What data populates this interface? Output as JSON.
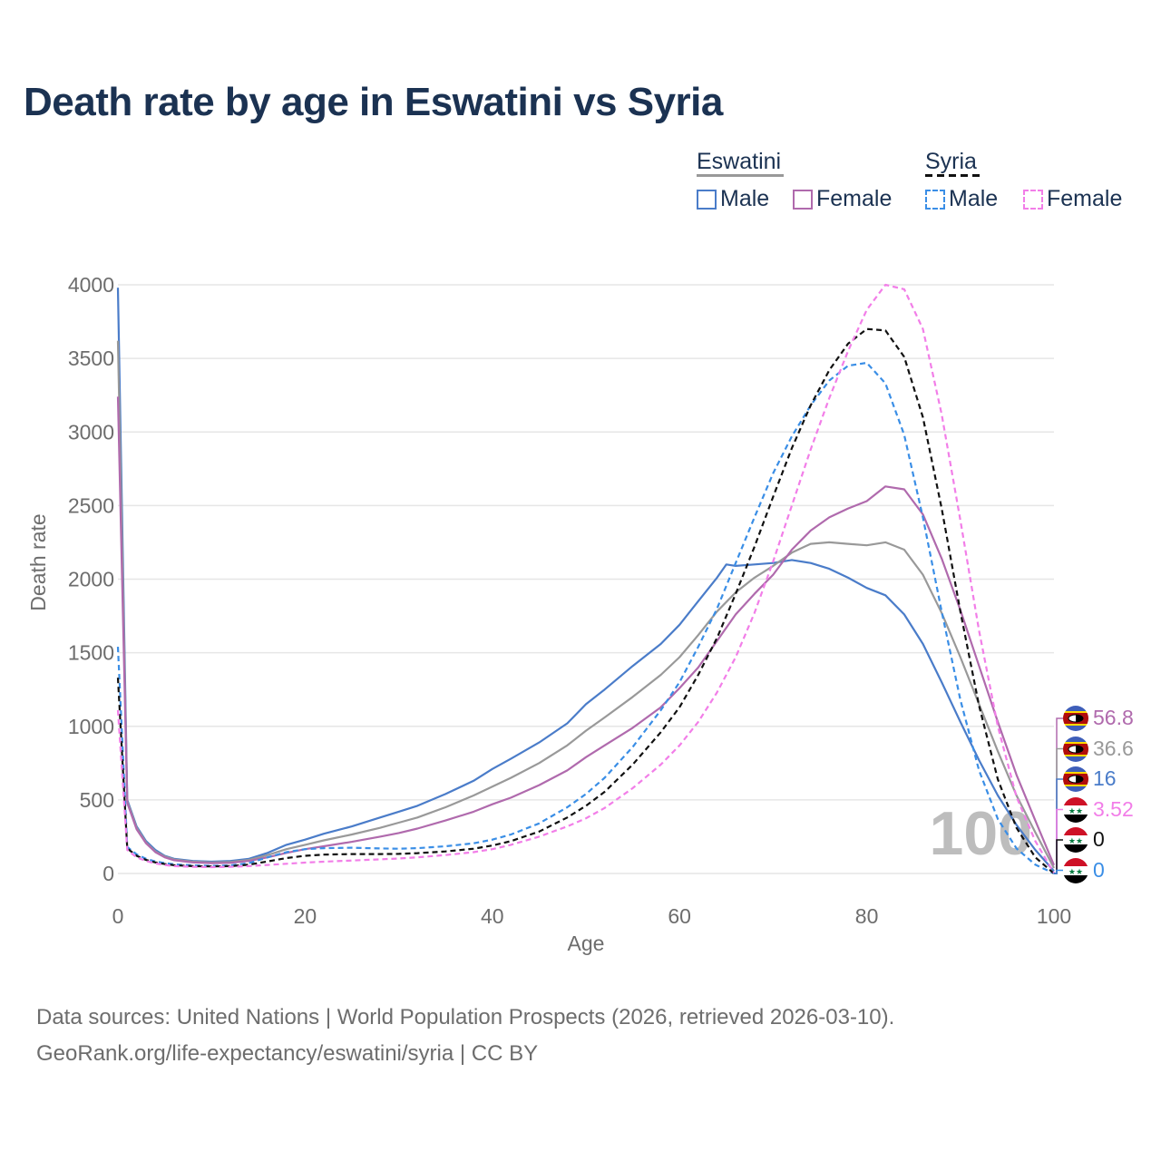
{
  "title": "Death rate by age in Eswatini vs Syria",
  "legend": {
    "groups": [
      {
        "name": "Eswatini",
        "line_color": "#999999",
        "dashed": false,
        "items": [
          {
            "label": "Male",
            "color": "#4a7cc9"
          },
          {
            "label": "Female",
            "color": "#b06aad"
          }
        ]
      },
      {
        "name": "Syria",
        "line_color": "#111111",
        "dashed": true,
        "items": [
          {
            "label": "Male",
            "color": "#3a8ee6"
          },
          {
            "label": "Female",
            "color": "#f27ee8"
          }
        ]
      }
    ]
  },
  "age_watermark": "100",
  "end_labels": [
    {
      "value": "56.8",
      "color": "#b06aad",
      "flag": "eswatini"
    },
    {
      "value": "36.6",
      "color": "#999999",
      "flag": "eswatini"
    },
    {
      "value": "16",
      "color": "#4a7cc9",
      "flag": "eswatini"
    },
    {
      "value": "3.52",
      "color": "#f27ee8",
      "flag": "syria"
    },
    {
      "value": "0",
      "color": "#111111",
      "flag": "syria"
    },
    {
      "value": "0",
      "color": "#3a8ee6",
      "flag": "syria"
    }
  ],
  "footer": {
    "line1": "Data sources: United Nations | World Population Prospects (2026, retrieved 2026-03-10).",
    "line2": "GeoRank.org/life-expectancy/eswatini/syria | CC BY"
  },
  "chart_data": {
    "type": "line",
    "title": "Death rate by age in Eswatini vs Syria",
    "xlabel": "Age",
    "ylabel": "Death rate",
    "xlim": [
      0,
      100
    ],
    "ylim": [
      0,
      4000
    ],
    "xticks": [
      0,
      20,
      40,
      60,
      80,
      100
    ],
    "yticks": [
      0,
      500,
      1000,
      1500,
      2000,
      2500,
      3000,
      3500,
      4000
    ],
    "grid": true,
    "series": [
      {
        "name": "Eswatini Male",
        "color": "#4a7cc9",
        "dashed": false,
        "points": [
          [
            0,
            3980
          ],
          [
            1,
            500
          ],
          [
            2,
            320
          ],
          [
            3,
            220
          ],
          [
            4,
            160
          ],
          [
            5,
            120
          ],
          [
            6,
            100
          ],
          [
            8,
            85
          ],
          [
            10,
            80
          ],
          [
            12,
            85
          ],
          [
            14,
            100
          ],
          [
            16,
            140
          ],
          [
            18,
            195
          ],
          [
            20,
            230
          ],
          [
            22,
            270
          ],
          [
            25,
            320
          ],
          [
            28,
            380
          ],
          [
            30,
            420
          ],
          [
            32,
            460
          ],
          [
            35,
            540
          ],
          [
            38,
            630
          ],
          [
            40,
            710
          ],
          [
            42,
            780
          ],
          [
            45,
            890
          ],
          [
            48,
            1020
          ],
          [
            50,
            1150
          ],
          [
            52,
            1250
          ],
          [
            55,
            1410
          ],
          [
            58,
            1560
          ],
          [
            60,
            1690
          ],
          [
            62,
            1850
          ],
          [
            64,
            2010
          ],
          [
            65,
            2100
          ],
          [
            66,
            2090
          ],
          [
            68,
            2100
          ],
          [
            70,
            2110
          ],
          [
            72,
            2130
          ],
          [
            74,
            2110
          ],
          [
            76,
            2070
          ],
          [
            78,
            2010
          ],
          [
            80,
            1940
          ],
          [
            82,
            1890
          ],
          [
            84,
            1760
          ],
          [
            86,
            1560
          ],
          [
            88,
            1300
          ],
          [
            90,
            1030
          ],
          [
            92,
            770
          ],
          [
            94,
            530
          ],
          [
            96,
            330
          ],
          [
            98,
            160
          ],
          [
            100,
            16
          ]
        ]
      },
      {
        "name": "Eswatini Total",
        "color": "#999999",
        "dashed": false,
        "points": [
          [
            0,
            3620
          ],
          [
            1,
            490
          ],
          [
            2,
            310
          ],
          [
            3,
            210
          ],
          [
            4,
            150
          ],
          [
            5,
            115
          ],
          [
            6,
            95
          ],
          [
            8,
            80
          ],
          [
            10,
            75
          ],
          [
            12,
            78
          ],
          [
            14,
            92
          ],
          [
            16,
            125
          ],
          [
            18,
            165
          ],
          [
            20,
            195
          ],
          [
            22,
            225
          ],
          [
            25,
            265
          ],
          [
            28,
            310
          ],
          [
            30,
            345
          ],
          [
            32,
            380
          ],
          [
            35,
            450
          ],
          [
            38,
            530
          ],
          [
            40,
            590
          ],
          [
            42,
            650
          ],
          [
            45,
            750
          ],
          [
            48,
            870
          ],
          [
            50,
            970
          ],
          [
            52,
            1060
          ],
          [
            55,
            1200
          ],
          [
            58,
            1350
          ],
          [
            60,
            1470
          ],
          [
            62,
            1620
          ],
          [
            64,
            1780
          ],
          [
            66,
            1910
          ],
          [
            68,
            2010
          ],
          [
            70,
            2090
          ],
          [
            72,
            2180
          ],
          [
            74,
            2240
          ],
          [
            76,
            2250
          ],
          [
            78,
            2240
          ],
          [
            80,
            2230
          ],
          [
            82,
            2250
          ],
          [
            84,
            2200
          ],
          [
            86,
            2030
          ],
          [
            88,
            1770
          ],
          [
            90,
            1470
          ],
          [
            92,
            1150
          ],
          [
            94,
            830
          ],
          [
            96,
            530
          ],
          [
            98,
            280
          ],
          [
            100,
            37
          ]
        ]
      },
      {
        "name": "Eswatini Female",
        "color": "#b06aad",
        "dashed": false,
        "points": [
          [
            0,
            3240
          ],
          [
            1,
            480
          ],
          [
            2,
            300
          ],
          [
            3,
            205
          ],
          [
            4,
            145
          ],
          [
            5,
            110
          ],
          [
            6,
            90
          ],
          [
            8,
            75
          ],
          [
            10,
            70
          ],
          [
            12,
            72
          ],
          [
            14,
            85
          ],
          [
            16,
            110
          ],
          [
            18,
            140
          ],
          [
            20,
            165
          ],
          [
            22,
            185
          ],
          [
            25,
            215
          ],
          [
            28,
            250
          ],
          [
            30,
            275
          ],
          [
            32,
            305
          ],
          [
            35,
            360
          ],
          [
            38,
            420
          ],
          [
            40,
            470
          ],
          [
            42,
            515
          ],
          [
            45,
            600
          ],
          [
            48,
            700
          ],
          [
            50,
            790
          ],
          [
            52,
            870
          ],
          [
            55,
            990
          ],
          [
            58,
            1130
          ],
          [
            60,
            1260
          ],
          [
            62,
            1400
          ],
          [
            64,
            1580
          ],
          [
            66,
            1760
          ],
          [
            68,
            1900
          ],
          [
            70,
            2030
          ],
          [
            72,
            2200
          ],
          [
            74,
            2330
          ],
          [
            76,
            2420
          ],
          [
            78,
            2480
          ],
          [
            80,
            2530
          ],
          [
            82,
            2630
          ],
          [
            84,
            2610
          ],
          [
            86,
            2440
          ],
          [
            88,
            2140
          ],
          [
            90,
            1790
          ],
          [
            92,
            1410
          ],
          [
            94,
            1030
          ],
          [
            96,
            670
          ],
          [
            98,
            360
          ],
          [
            100,
            57
          ]
        ]
      },
      {
        "name": "Syria Male",
        "color": "#3a8ee6",
        "dashed": true,
        "points": [
          [
            0,
            1540
          ],
          [
            1,
            180
          ],
          [
            2,
            130
          ],
          [
            3,
            100
          ],
          [
            4,
            82
          ],
          [
            5,
            70
          ],
          [
            6,
            62
          ],
          [
            8,
            55
          ],
          [
            10,
            52
          ],
          [
            12,
            55
          ],
          [
            14,
            70
          ],
          [
            16,
            110
          ],
          [
            18,
            145
          ],
          [
            20,
            165
          ],
          [
            22,
            172
          ],
          [
            25,
            175
          ],
          [
            28,
            170
          ],
          [
            30,
            168
          ],
          [
            32,
            172
          ],
          [
            35,
            185
          ],
          [
            38,
            205
          ],
          [
            40,
            230
          ],
          [
            42,
            265
          ],
          [
            45,
            340
          ],
          [
            48,
            450
          ],
          [
            50,
            540
          ],
          [
            52,
            650
          ],
          [
            55,
            860
          ],
          [
            58,
            1110
          ],
          [
            60,
            1300
          ],
          [
            62,
            1540
          ],
          [
            64,
            1800
          ],
          [
            66,
            2110
          ],
          [
            68,
            2420
          ],
          [
            70,
            2720
          ],
          [
            72,
            2970
          ],
          [
            74,
            3180
          ],
          [
            76,
            3350
          ],
          [
            78,
            3450
          ],
          [
            80,
            3470
          ],
          [
            82,
            3330
          ],
          [
            84,
            2980
          ],
          [
            86,
            2420
          ],
          [
            88,
            1780
          ],
          [
            90,
            1180
          ],
          [
            92,
            700
          ],
          [
            94,
            370
          ],
          [
            96,
            170
          ],
          [
            98,
            60
          ],
          [
            100,
            0
          ]
        ]
      },
      {
        "name": "Syria Total",
        "color": "#111111",
        "dashed": true,
        "points": [
          [
            0,
            1330
          ],
          [
            1,
            170
          ],
          [
            2,
            120
          ],
          [
            3,
            92
          ],
          [
            4,
            75
          ],
          [
            5,
            64
          ],
          [
            6,
            56
          ],
          [
            8,
            50
          ],
          [
            10,
            48
          ],
          [
            12,
            50
          ],
          [
            14,
            60
          ],
          [
            16,
            82
          ],
          [
            18,
            105
          ],
          [
            20,
            120
          ],
          [
            22,
            128
          ],
          [
            25,
            132
          ],
          [
            28,
            132
          ],
          [
            30,
            133
          ],
          [
            32,
            138
          ],
          [
            35,
            150
          ],
          [
            38,
            168
          ],
          [
            40,
            190
          ],
          [
            42,
            220
          ],
          [
            45,
            285
          ],
          [
            48,
            380
          ],
          [
            50,
            460
          ],
          [
            52,
            555
          ],
          [
            55,
            740
          ],
          [
            58,
            960
          ],
          [
            60,
            1130
          ],
          [
            62,
            1350
          ],
          [
            64,
            1600
          ],
          [
            66,
            1900
          ],
          [
            68,
            2220
          ],
          [
            70,
            2560
          ],
          [
            72,
            2890
          ],
          [
            74,
            3180
          ],
          [
            76,
            3420
          ],
          [
            78,
            3600
          ],
          [
            80,
            3700
          ],
          [
            82,
            3690
          ],
          [
            84,
            3510
          ],
          [
            86,
            3100
          ],
          [
            88,
            2480
          ],
          [
            90,
            1780
          ],
          [
            92,
            1140
          ],
          [
            94,
            640
          ],
          [
            96,
            310
          ],
          [
            98,
            110
          ],
          [
            100,
            0
          ]
        ]
      },
      {
        "name": "Syria Female",
        "color": "#f27ee8",
        "dashed": true,
        "points": [
          [
            0,
            1110
          ],
          [
            1,
            160
          ],
          [
            2,
            110
          ],
          [
            3,
            85
          ],
          [
            4,
            68
          ],
          [
            5,
            58
          ],
          [
            6,
            50
          ],
          [
            8,
            45
          ],
          [
            10,
            43
          ],
          [
            12,
            45
          ],
          [
            14,
            50
          ],
          [
            16,
            58
          ],
          [
            18,
            66
          ],
          [
            20,
            74
          ],
          [
            22,
            80
          ],
          [
            25,
            88
          ],
          [
            28,
            96
          ],
          [
            30,
            102
          ],
          [
            32,
            110
          ],
          [
            35,
            125
          ],
          [
            38,
            145
          ],
          [
            40,
            165
          ],
          [
            42,
            195
          ],
          [
            45,
            250
          ],
          [
            48,
            320
          ],
          [
            50,
            375
          ],
          [
            52,
            445
          ],
          [
            55,
            580
          ],
          [
            58,
            740
          ],
          [
            60,
            870
          ],
          [
            62,
            1030
          ],
          [
            64,
            1230
          ],
          [
            66,
            1470
          ],
          [
            68,
            1770
          ],
          [
            70,
            2120
          ],
          [
            72,
            2500
          ],
          [
            74,
            2880
          ],
          [
            76,
            3230
          ],
          [
            78,
            3550
          ],
          [
            80,
            3830
          ],
          [
            82,
            4000
          ],
          [
            84,
            3970
          ],
          [
            86,
            3700
          ],
          [
            88,
            3120
          ],
          [
            90,
            2400
          ],
          [
            92,
            1650
          ],
          [
            94,
            1000
          ],
          [
            96,
            520
          ],
          [
            98,
            220
          ],
          [
            100,
            3.5
          ]
        ]
      }
    ]
  }
}
